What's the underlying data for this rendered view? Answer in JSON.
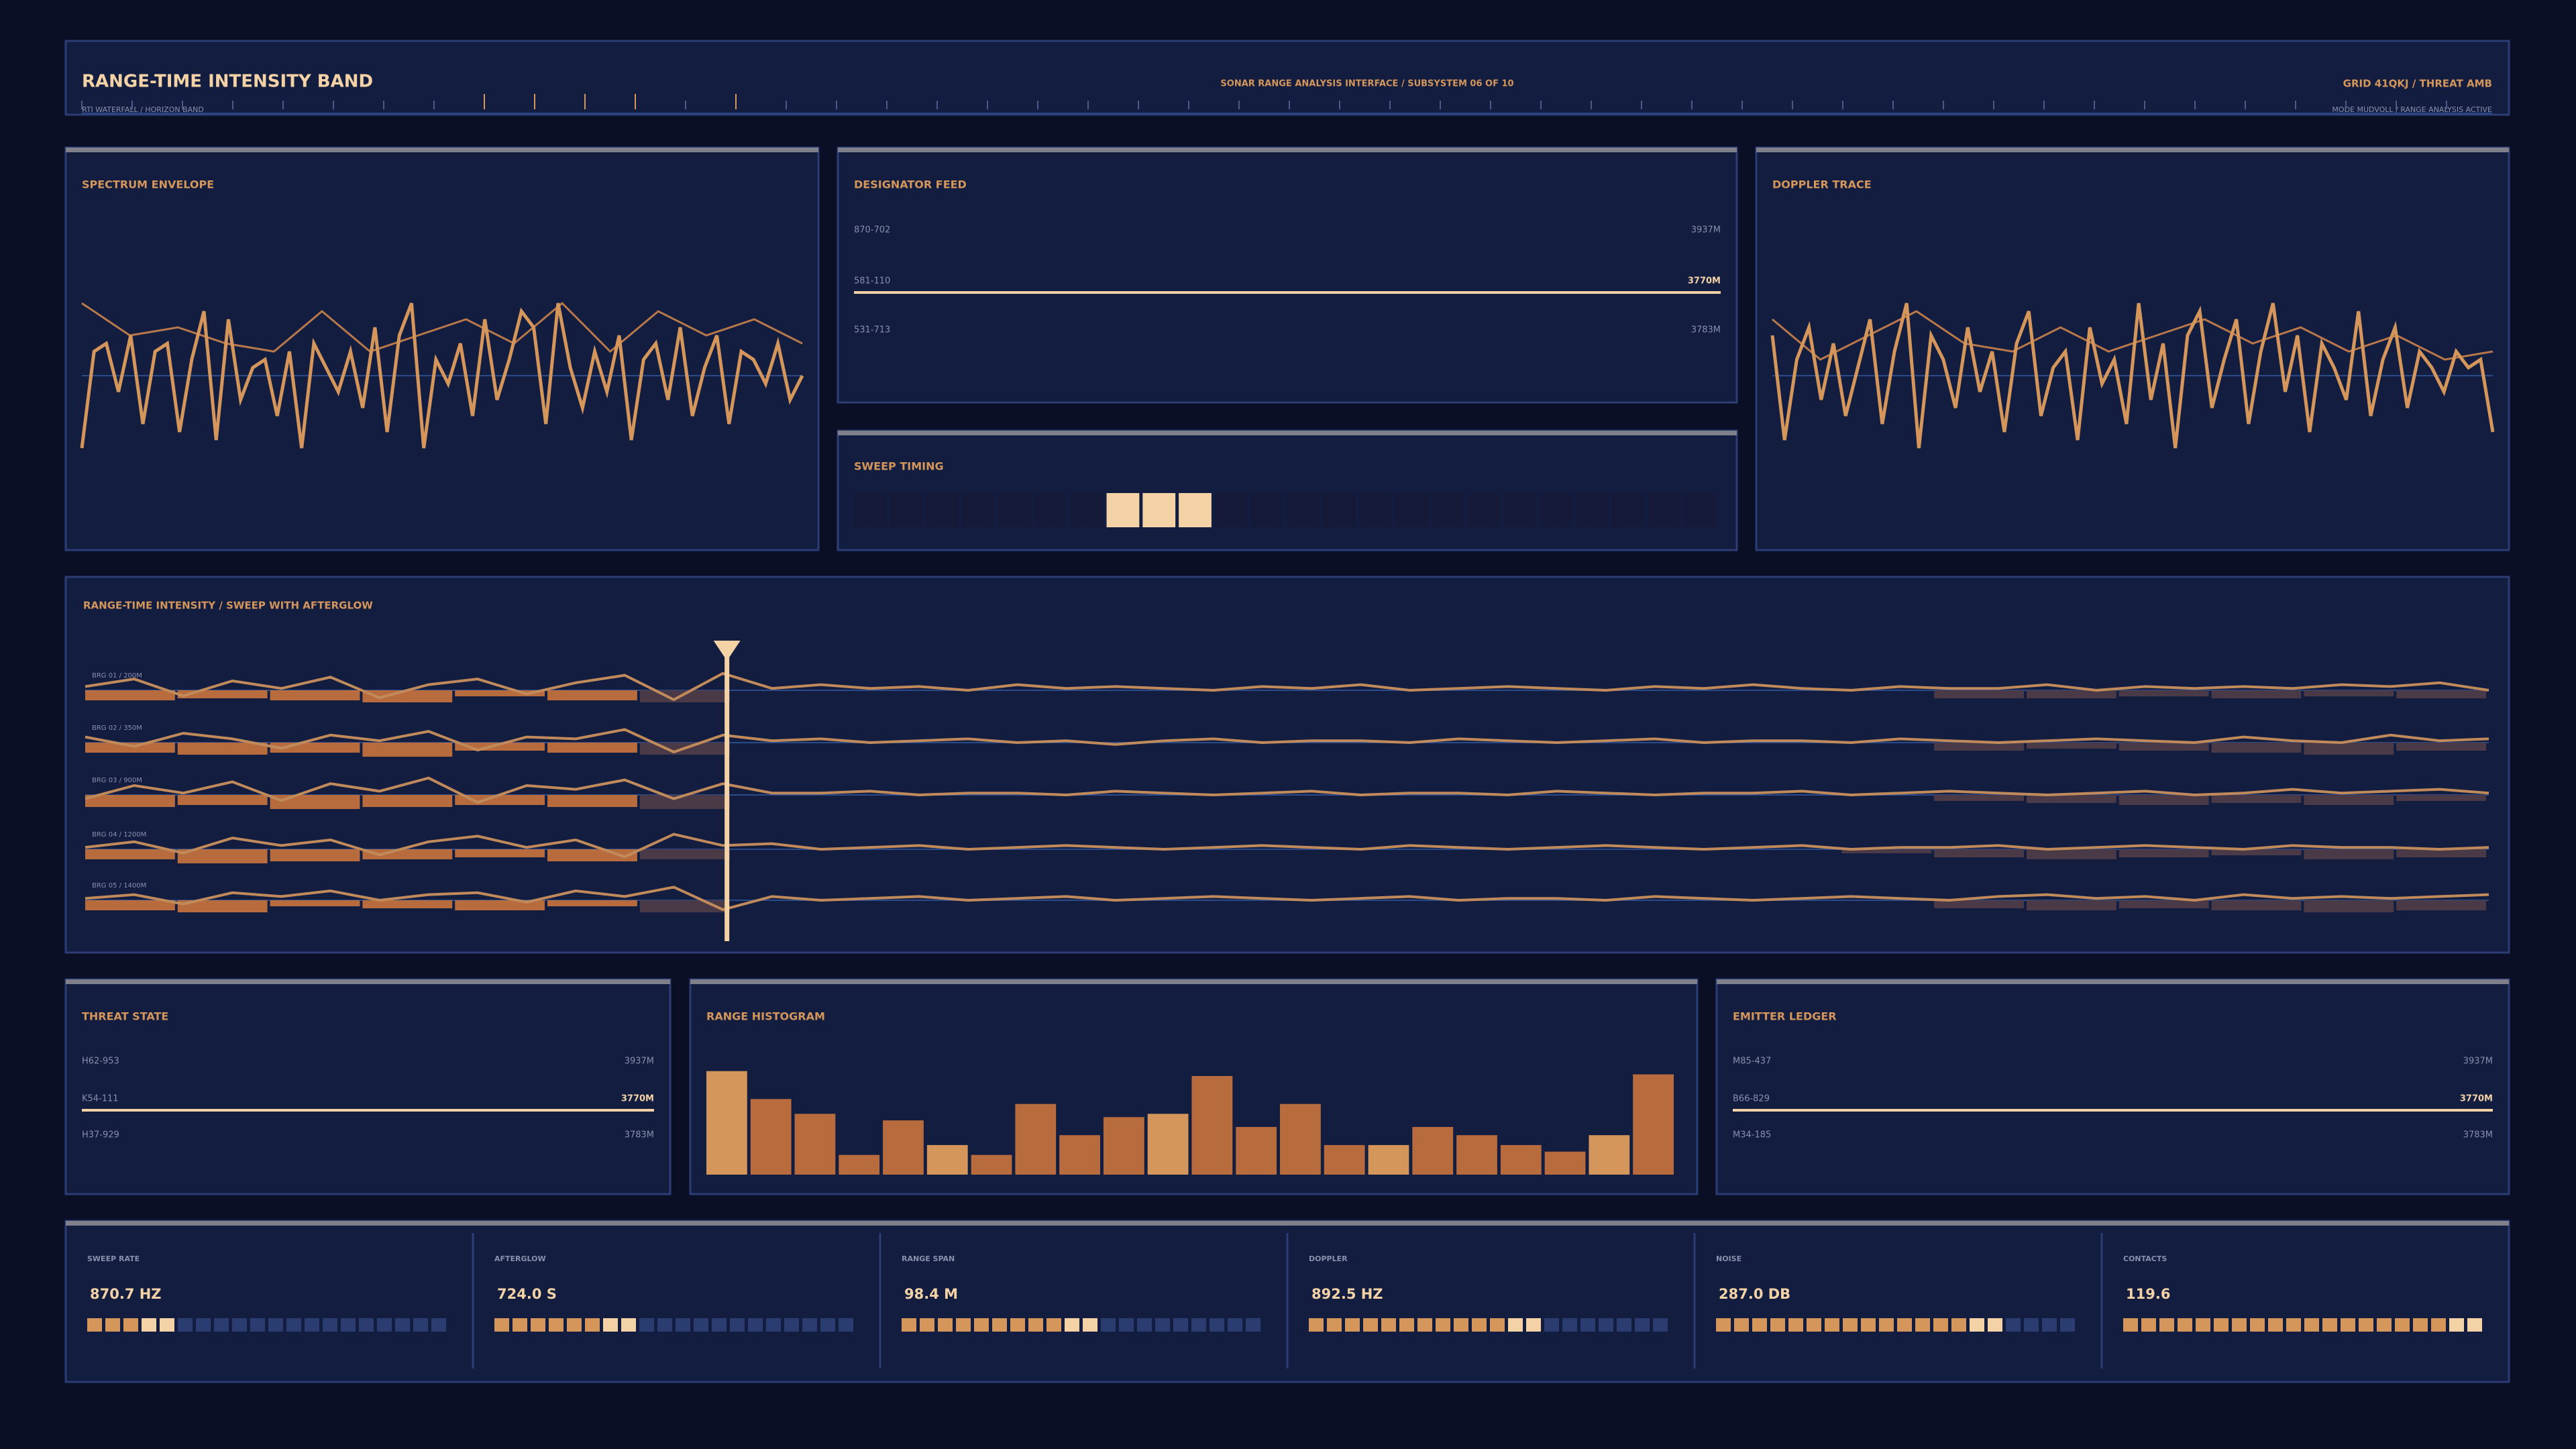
{
  "header": {
    "title": "RANGE-TIME INTENSITY BAND",
    "subtitle": "RTI WATERFALL / HORIZON BAND",
    "center": "SONAR RANGE ANALYSIS INTERFACE / SUBSYSTEM 06 OF 10",
    "right": "GRID 41QKJ / THREAT AMB",
    "right_sub": "MODE MUDVOLL / RANGE ANALYSIS ACTIVE"
  },
  "spectrum": {
    "title": "SPECTRUM ENVELOPE",
    "trace": [
      -0.9,
      0.3,
      0.4,
      -0.2,
      0.5,
      -0.6,
      0.3,
      0.4,
      -0.7,
      0.2,
      0.8,
      -0.8,
      0.7,
      -0.3,
      0.1,
      0.2,
      -0.5,
      0.3,
      -0.9,
      0.4,
      0.1,
      -0.2,
      0.3,
      -0.4,
      0.6,
      -0.7,
      0.5,
      0.9,
      -0.9,
      0.2,
      -0.1,
      0.4,
      -0.5,
      0.7,
      -0.3,
      0.2,
      0.8,
      0.6,
      -0.6,
      0.9,
      0.1,
      -0.4,
      0.3,
      -0.2,
      0.5,
      -0.8,
      0.2,
      0.4,
      -0.3,
      0.6,
      -0.5,
      0.1,
      0.5,
      -0.6,
      0.3,
      0.2,
      -0.1,
      0.4,
      -0.3,
      0.0
    ],
    "envelope": [
      0.9,
      0.5,
      0.6,
      0.4,
      0.3,
      0.8,
      0.3,
      0.5,
      0.7,
      0.4,
      0.9,
      0.3,
      0.8,
      0.5,
      0.7,
      0.4
    ]
  },
  "designator": {
    "title": "DESIGNATOR FEED",
    "rows": [
      {
        "id": "870-702",
        "range": "3937M"
      },
      {
        "id": "581-110",
        "range": "3770M"
      },
      {
        "id": "531-713",
        "range": "3783M"
      }
    ],
    "selected": 1
  },
  "sweep_timing": {
    "title": "SWEEP TIMING",
    "cells": 24,
    "active": [
      7,
      8,
      9
    ]
  },
  "doppler": {
    "title": "DOPPLER TRACE",
    "trace": [
      0.5,
      -0.8,
      0.2,
      0.6,
      -0.3,
      0.4,
      -0.5,
      0.1,
      0.7,
      -0.6,
      0.3,
      0.9,
      -0.9,
      0.5,
      0.2,
      -0.4,
      0.6,
      -0.2,
      0.3,
      -0.7,
      0.4,
      0.8,
      -0.5,
      0.1,
      0.3,
      -0.8,
      0.6,
      -0.1,
      0.2,
      -0.6,
      0.9,
      -0.3,
      0.4,
      -0.9,
      0.5,
      0.8,
      -0.4,
      0.2,
      0.7,
      -0.6,
      0.3,
      0.9,
      -0.2,
      0.5,
      -0.7,
      0.4,
      0.1,
      -0.3,
      0.8,
      -0.5,
      0.2,
      0.6,
      -0.4,
      0.3,
      0.1,
      -0.2,
      0.3,
      0.1,
      0.2,
      -0.7
    ],
    "envelope": [
      0.7,
      0.2,
      0.5,
      0.8,
      0.4,
      0.3,
      0.6,
      0.3,
      0.5,
      0.7,
      0.4,
      0.6,
      0.3,
      0.5,
      0.2,
      0.3
    ]
  },
  "rti": {
    "title": "RANGE-TIME INTENSITY / SWEEP WITH AFTERGLOW",
    "sweep_position": 0.267,
    "rows": [
      {
        "label": "BRG 01 / 200M",
        "trace": [
          0.2,
          0.6,
          -0.3,
          0.5,
          0.1,
          0.7,
          -0.4,
          0.3,
          0.6,
          -0.2,
          0.4,
          0.8,
          -0.5,
          0.9,
          0.1,
          0.3,
          0.1,
          0.2,
          0.0,
          0.3,
          0.1,
          0.2,
          0.1,
          0.0,
          0.2,
          0.1,
          0.3,
          0.0,
          0.1,
          0.2,
          0.1,
          0.0,
          0.2,
          0.1,
          0.3,
          0.1,
          0.0,
          0.2,
          0.1,
          0.1,
          0.3,
          0.0,
          0.2,
          0.1,
          0.2,
          0.1,
          0.3,
          0.2,
          0.4,
          0.0
        ],
        "blocks": [
          0.5,
          0.4,
          0.5,
          0.6,
          0.3,
          0.5,
          0.6,
          0,
          0,
          0,
          0,
          0,
          0,
          0,
          0,
          0,
          0,
          0,
          0,
          0,
          0.4,
          0.4,
          0.3,
          0.4,
          0.3,
          0.4
        ]
      },
      {
        "label": "BRG 02 / 350M",
        "trace": [
          0.3,
          -0.2,
          0.5,
          0.2,
          -0.3,
          0.4,
          0.1,
          0.6,
          -0.4,
          0.3,
          0.2,
          0.7,
          -0.5,
          0.4,
          0.1,
          0.2,
          0.0,
          0.1,
          0.2,
          0.0,
          0.1,
          -0.1,
          0.1,
          0.2,
          0.0,
          0.1,
          0.1,
          0.0,
          0.2,
          0.1,
          0.0,
          0.1,
          0.2,
          0.0,
          0.1,
          0.1,
          0.0,
          0.2,
          0.1,
          0.0,
          0.1,
          0.2,
          0.1,
          0.0,
          0.3,
          0.1,
          0.0,
          0.4,
          0.1,
          0.2
        ],
        "blocks": [
          0.5,
          0.6,
          0.5,
          0.7,
          0.4,
          0.5,
          0.6,
          0,
          0,
          0,
          0,
          0,
          0,
          0,
          0,
          0,
          0,
          0,
          0,
          0,
          0.4,
          0.3,
          0.4,
          0.5,
          0.6,
          0.4
        ]
      },
      {
        "label": "BRG 03 / 900M",
        "trace": [
          -0.2,
          0.5,
          0.1,
          0.7,
          -0.3,
          0.6,
          0.2,
          0.9,
          -0.4,
          0.5,
          0.3,
          0.8,
          -0.2,
          0.6,
          0.1,
          0.1,
          0.2,
          0.0,
          0.1,
          0.1,
          0.0,
          0.2,
          0.1,
          0.0,
          0.1,
          0.2,
          0.0,
          0.1,
          0.1,
          0.0,
          0.2,
          0.1,
          0.0,
          0.1,
          0.1,
          0.2,
          0.0,
          0.1,
          0.2,
          0.1,
          0.0,
          0.1,
          0.2,
          0.0,
          0.1,
          0.3,
          0.1,
          0.2,
          0.3,
          0.1
        ],
        "blocks": [
          0.6,
          0.5,
          0.7,
          0.6,
          0.5,
          0.6,
          0.7,
          0,
          0,
          0,
          0,
          0,
          0,
          0,
          0,
          0,
          0,
          0,
          0,
          0,
          0.3,
          0.4,
          0.5,
          0.4,
          0.5,
          0.3
        ]
      },
      {
        "label": "BRG 04 / 1200M",
        "trace": [
          0.1,
          0.4,
          -0.2,
          0.6,
          0.2,
          0.5,
          -0.3,
          0.4,
          0.7,
          0.1,
          0.5,
          -0.4,
          0.8,
          0.2,
          0.3,
          0.0,
          0.1,
          0.2,
          0.0,
          0.1,
          0.2,
          0.1,
          0.0,
          0.1,
          0.2,
          0.1,
          0.0,
          0.2,
          0.1,
          0.0,
          0.1,
          0.2,
          0.1,
          0.0,
          0.1,
          0.2,
          0.0,
          0.1,
          0.1,
          0.2,
          0.0,
          0.1,
          0.2,
          0.1,
          0.0,
          0.2,
          0.1,
          0.1,
          0.0,
          0.1
        ],
        "blocks": [
          0.5,
          0.7,
          0.6,
          0.5,
          0.4,
          0.6,
          0.5,
          0,
          0,
          0,
          0,
          0,
          0,
          0,
          0,
          0,
          0,
          0,
          0,
          0.2,
          0.4,
          0.5,
          0.4,
          0.3,
          0.5,
          0.4
        ]
      },
      {
        "label": "BRG 05 / 1400M",
        "trace": [
          0.1,
          0.3,
          -0.2,
          0.4,
          0.2,
          0.5,
          0.0,
          0.3,
          0.4,
          -0.1,
          0.5,
          0.2,
          0.7,
          -0.5,
          0.2,
          0.0,
          0.1,
          0.2,
          0.0,
          0.1,
          0.2,
          0.0,
          0.1,
          0.2,
          0.1,
          0.0,
          0.1,
          0.2,
          0.0,
          0.1,
          0.1,
          0.0,
          0.2,
          0.1,
          0.0,
          0.1,
          0.2,
          0.1,
          0.0,
          0.2,
          0.3,
          0.1,
          0.2,
          0.0,
          0.3,
          0.1,
          0.2,
          0.1,
          0.2,
          0.3
        ],
        "blocks": [
          0.5,
          0.6,
          0.3,
          0.4,
          0.5,
          0.3,
          0.6,
          0,
          0,
          0,
          0,
          0,
          0,
          0,
          0,
          0,
          0,
          0,
          0,
          0,
          0.4,
          0.5,
          0.4,
          0.5,
          0.6,
          0.5
        ]
      }
    ]
  },
  "threat": {
    "title": "THREAT STATE",
    "rows": [
      {
        "id": "H62-953",
        "range": "3937M"
      },
      {
        "id": "K54-111",
        "range": "3770M"
      },
      {
        "id": "H37-929",
        "range": "3783M"
      }
    ],
    "selected": 1
  },
  "histogram": {
    "title": "RANGE HISTOGRAM",
    "values": [
      63,
      46,
      37,
      12,
      33,
      18,
      12,
      43,
      24,
      35,
      37,
      60,
      29,
      43,
      18,
      18,
      29,
      24,
      18,
      14,
      24,
      61
    ]
  },
  "emitter": {
    "title": "EMITTER LEDGER",
    "rows": [
      {
        "id": "M85-437",
        "range": "3937M"
      },
      {
        "id": "B66-829",
        "range": "3770M"
      },
      {
        "id": "M34-185",
        "range": "3783M"
      }
    ],
    "selected": 1
  },
  "metrics": [
    {
      "label": "SWEEP RATE",
      "value": "870.7 HZ",
      "level": 5
    },
    {
      "label": "AFTERGLOW",
      "value": "724.0 S",
      "level": 8
    },
    {
      "label": "RANGE SPAN",
      "value": "98.4 M",
      "level": 11
    },
    {
      "label": "DOPPLER",
      "value": "892.5 HZ",
      "level": 13
    },
    {
      "label": "NOISE",
      "value": "287.0 DB",
      "level": 16
    },
    {
      "label": "CONTACTS",
      "value": "119.6",
      "level": 20
    }
  ]
}
